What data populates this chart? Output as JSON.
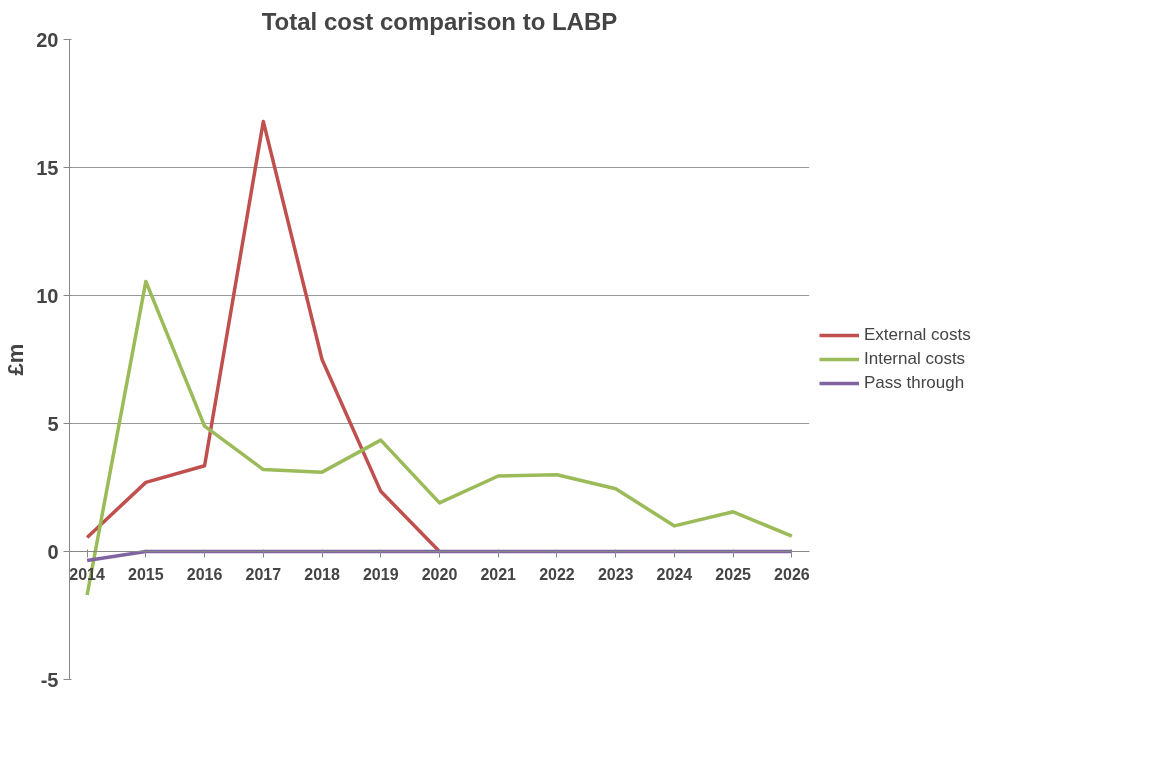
{
  "chart_data": {
    "type": "line",
    "title": "Total cost comparison to LABP",
    "ylabel": "£m",
    "categories": [
      "2014",
      "2015",
      "2016",
      "2017",
      "2018",
      "2019",
      "2020",
      "2021",
      "2022",
      "2023",
      "2024",
      "2025",
      "2026"
    ],
    "series": [
      {
        "name": "External costs",
        "color": "#c0504d",
        "values": [
          0.55,
          2.7,
          3.35,
          16.8,
          7.5,
          2.35,
          0,
          null,
          null,
          null,
          null,
          null,
          null
        ]
      },
      {
        "name": "Internal costs",
        "color": "#9bbb59",
        "values": [
          -1.7,
          10.55,
          4.9,
          3.2,
          3.1,
          4.35,
          1.9,
          2.95,
          3.0,
          2.45,
          1.0,
          1.55,
          0.6
        ]
      },
      {
        "name": "Pass through",
        "color": "#8064a2",
        "values": [
          -0.35,
          0,
          0,
          0,
          0,
          0,
          0,
          0,
          0,
          0,
          0,
          0,
          0
        ]
      }
    ],
    "ylim": [
      -5,
      20
    ],
    "yticks": [
      -5,
      0,
      5,
      10,
      15,
      20
    ],
    "grid": "y",
    "legend": "right",
    "line_style": "solid"
  }
}
